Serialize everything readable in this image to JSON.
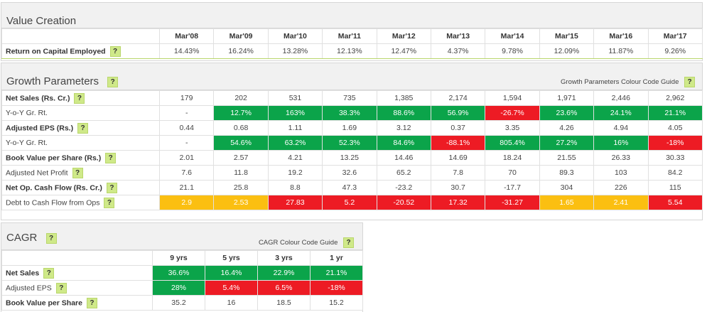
{
  "value_creation": {
    "title": "Value Creation",
    "years": [
      "Mar'08",
      "Mar'09",
      "Mar'10",
      "Mar'11",
      "Mar'12",
      "Mar'13",
      "Mar'14",
      "Mar'15",
      "Mar'16",
      "Mar'17"
    ],
    "roce_label": "Return on Capital Employed",
    "roce": [
      "14.43%",
      "16.24%",
      "13.28%",
      "12.13%",
      "12.47%",
      "4.37%",
      "9.78%",
      "12.09%",
      "11.87%",
      "9.26%"
    ]
  },
  "growth": {
    "title": "Growth Parameters",
    "guide_label": "Growth Parameters Colour Code Guide",
    "rows": [
      {
        "label": "Net Sales (Rs. Cr.)",
        "bold": true,
        "help": true,
        "values": [
          "179",
          "202",
          "531",
          "735",
          "1,385",
          "2,174",
          "1,594",
          "1,971",
          "2,446",
          "2,962"
        ],
        "colors": [
          "",
          "",
          "",
          "",
          "",
          "",
          "",
          "",
          "",
          ""
        ]
      },
      {
        "label": "Y-o-Y Gr. Rt.",
        "bold": false,
        "help": false,
        "values": [
          "-",
          "12.7%",
          "163%",
          "38.3%",
          "88.6%",
          "56.9%",
          "-26.7%",
          "23.6%",
          "24.1%",
          "21.1%"
        ],
        "colors": [
          "",
          "g",
          "g",
          "g",
          "g",
          "g",
          "r",
          "g",
          "g",
          "g"
        ]
      },
      {
        "label": "Adjusted EPS (Rs.)",
        "bold": true,
        "help": true,
        "values": [
          "0.44",
          "0.68",
          "1.11",
          "1.69",
          "3.12",
          "0.37",
          "3.35",
          "4.26",
          "4.94",
          "4.05"
        ],
        "colors": [
          "",
          "",
          "",
          "",
          "",
          "",
          "",
          "",
          "",
          ""
        ]
      },
      {
        "label": "Y-o-Y Gr. Rt.",
        "bold": false,
        "help": false,
        "values": [
          "-",
          "54.6%",
          "63.2%",
          "52.3%",
          "84.6%",
          "-88.1%",
          "805.4%",
          "27.2%",
          "16%",
          "-18%"
        ],
        "colors": [
          "",
          "g",
          "g",
          "g",
          "g",
          "r",
          "g",
          "g",
          "g",
          "r"
        ]
      },
      {
        "label": "Book Value per Share (Rs.)",
        "bold": true,
        "help": true,
        "values": [
          "2.01",
          "2.57",
          "4.21",
          "13.25",
          "14.46",
          "14.69",
          "18.24",
          "21.55",
          "26.33",
          "30.33"
        ],
        "colors": [
          "",
          "",
          "",
          "",
          "",
          "",
          "",
          "",
          "",
          ""
        ]
      },
      {
        "label": "Adjusted Net Profit",
        "bold": false,
        "help": true,
        "values": [
          "7.6",
          "11.8",
          "19.2",
          "32.6",
          "65.2",
          "7.8",
          "70",
          "89.3",
          "103",
          "84.2"
        ],
        "colors": [
          "",
          "",
          "",
          "",
          "",
          "",
          "",
          "",
          "",
          ""
        ]
      },
      {
        "label": "Net Op. Cash Flow (Rs. Cr.)",
        "bold": true,
        "help": true,
        "values": [
          "21.1",
          "25.8",
          "8.8",
          "47.3",
          "-23.2",
          "30.7",
          "-17.7",
          "304",
          "226",
          "115"
        ],
        "colors": [
          "",
          "",
          "",
          "",
          "",
          "",
          "",
          "",
          "",
          ""
        ]
      },
      {
        "label": "Debt to Cash Flow from Ops",
        "bold": false,
        "help": true,
        "values": [
          "2.9",
          "2.53",
          "27.83",
          "5.2",
          "-20.52",
          "17.32",
          "-31.27",
          "1.65",
          "2.41",
          "5.54"
        ],
        "colors": [
          "y",
          "y",
          "r",
          "r",
          "r",
          "r",
          "r",
          "y",
          "y",
          "r"
        ]
      }
    ]
  },
  "cagr": {
    "title": "CAGR",
    "guide_label": "CAGR Colour Code Guide",
    "periods": [
      "9 yrs",
      "5 yrs",
      "3 yrs",
      "1 yr"
    ],
    "rows": [
      {
        "label": "Net Sales",
        "bold": true,
        "values": [
          "36.6%",
          "16.4%",
          "22.9%",
          "21.1%"
        ],
        "colors": [
          "g",
          "g",
          "g",
          "g"
        ]
      },
      {
        "label": "Adjusted EPS",
        "bold": false,
        "values": [
          "28%",
          "5.4%",
          "6.5%",
          "-18%"
        ],
        "colors": [
          "g",
          "r",
          "r",
          "r"
        ]
      },
      {
        "label": "Book Value per Share",
        "bold": true,
        "values": [
          "35.2",
          "16",
          "18.5",
          "15.2"
        ],
        "colors": [
          "",
          "",
          "",
          ""
        ]
      }
    ]
  },
  "help_glyph": "?",
  "colors": {
    "green": "#0ba44a",
    "red": "#ed1b24",
    "yellow": "#fbbf11",
    "help_bg": "#cfe989"
  }
}
